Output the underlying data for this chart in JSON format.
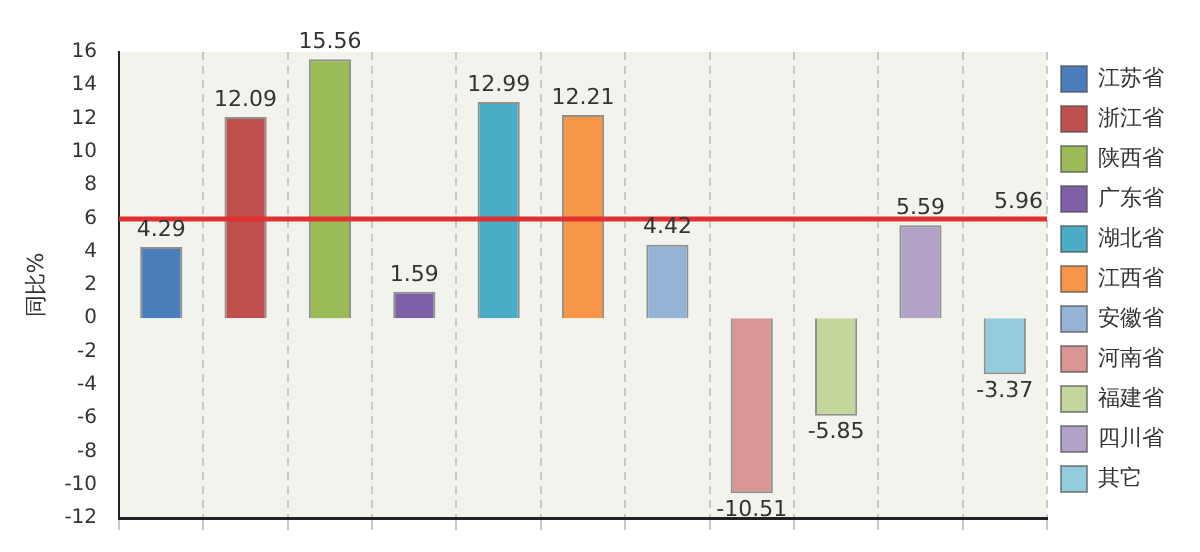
{
  "chart_data": {
    "type": "bar",
    "ylabel": "同比%",
    "categories": [
      null,
      null,
      null,
      null,
      null,
      null,
      null,
      null,
      null,
      null,
      null
    ],
    "series": [
      {
        "name": "江苏省",
        "color": "#4a7ebb",
        "values": [
          4.29,
          null,
          null,
          null,
          null,
          null,
          null,
          null,
          null,
          null,
          null
        ]
      },
      {
        "name": "浙江省",
        "color": "#c0504d",
        "values": [
          null,
          12.09,
          null,
          null,
          null,
          null,
          null,
          null,
          null,
          null,
          null
        ]
      },
      {
        "name": "陕西省",
        "color": "#9bbb59",
        "values": [
          null,
          null,
          15.56,
          null,
          null,
          null,
          null,
          null,
          null,
          null,
          null
        ]
      },
      {
        "name": "广东省",
        "color": "#7f5fa8",
        "values": [
          null,
          null,
          null,
          1.59,
          null,
          null,
          null,
          null,
          null,
          null,
          null
        ]
      },
      {
        "name": "湖北省",
        "color": "#4bacc6",
        "values": [
          null,
          null,
          null,
          null,
          12.99,
          null,
          null,
          null,
          null,
          null,
          null
        ]
      },
      {
        "name": "江西省",
        "color": "#f79646",
        "values": [
          null,
          null,
          null,
          null,
          null,
          12.21,
          null,
          null,
          null,
          null,
          null
        ]
      },
      {
        "name": "安徽省",
        "color": "#95b3d7",
        "values": [
          null,
          null,
          null,
          null,
          null,
          null,
          4.42,
          null,
          null,
          null,
          null
        ]
      },
      {
        "name": "河南省",
        "color": "#d99694",
        "values": [
          null,
          null,
          null,
          null,
          null,
          null,
          null,
          -10.51,
          null,
          null,
          null
        ]
      },
      {
        "name": "福建省",
        "color": "#c3d69b",
        "values": [
          null,
          null,
          null,
          null,
          null,
          null,
          null,
          null,
          -5.85,
          null,
          null
        ]
      },
      {
        "name": "四川省",
        "color": "#b3a2c7",
        "values": [
          null,
          null,
          null,
          null,
          null,
          null,
          null,
          null,
          null,
          5.59,
          null
        ]
      },
      {
        "name": "其它",
        "color": "#93cddd",
        "values": [
          null,
          null,
          null,
          null,
          null,
          null,
          null,
          null,
          null,
          null,
          -3.37
        ]
      }
    ],
    "ylim": [
      -12,
      16
    ],
    "yticks": [
      -12,
      -10,
      -8,
      -6,
      -4,
      -2,
      0,
      2,
      4,
      6,
      8,
      10,
      12,
      14,
      16
    ],
    "ref_lines": [
      {
        "axis": "y",
        "value": 5.96,
        "label": "5.96",
        "color": "#e03030"
      }
    ],
    "data_labels": true,
    "grid": "x",
    "legend": "right",
    "tick_labels": "y"
  }
}
